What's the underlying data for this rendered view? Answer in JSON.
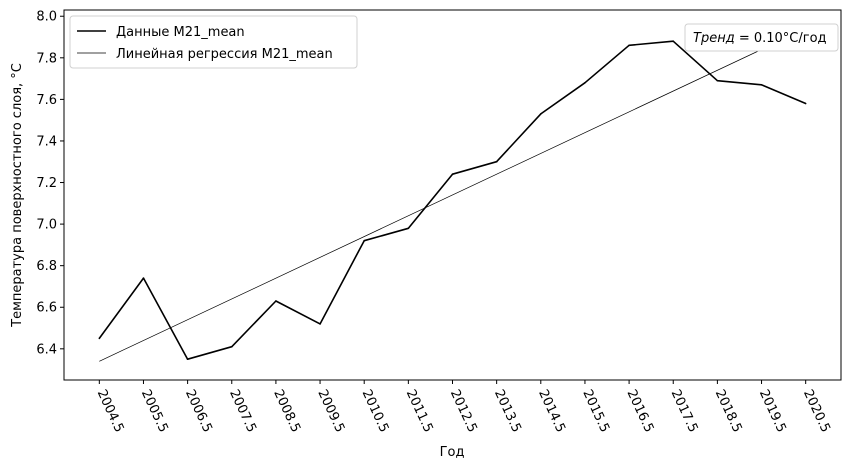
{
  "chart_data": {
    "type": "line",
    "xlabel": "Год",
    "ylabel": "Температура поверхностного слоя, °C",
    "x_ticks": [
      "2004.5",
      "2005.5",
      "2006.5",
      "2007.5",
      "2008.5",
      "2009.5",
      "2010.5",
      "2011.5",
      "2012.5",
      "2013.5",
      "2014.5",
      "2015.5",
      "2016.5",
      "2017.5",
      "2018.5",
      "2019.5",
      "2020.5"
    ],
    "x": [
      2004.5,
      2005.5,
      2006.5,
      2007.5,
      2008.5,
      2009.5,
      2010.5,
      2011.5,
      2012.5,
      2013.5,
      2014.5,
      2015.5,
      2016.5,
      2017.5,
      2018.5,
      2019.5,
      2020.5
    ],
    "xlim": [
      2003.7,
      2021.3
    ],
    "ylim": [
      6.25,
      8.03
    ],
    "y_ticks": [
      6.4,
      6.6,
      6.8,
      7.0,
      7.2,
      7.4,
      7.6,
      7.8,
      8.0
    ],
    "y_tick_labels": [
      "6.4",
      "6.6",
      "6.8",
      "7.0",
      "7.2",
      "7.4",
      "7.6",
      "7.8",
      "8.0"
    ],
    "series": [
      {
        "name": "Данные M21_mean",
        "color": "#000000",
        "values": [
          6.45,
          6.74,
          6.35,
          6.41,
          6.63,
          6.52,
          6.92,
          6.98,
          7.24,
          7.3,
          7.53,
          7.68,
          7.86,
          7.88,
          7.69,
          7.67,
          7.58
        ]
      },
      {
        "name": "Линейная регрессия M21_mean",
        "color": "#000000",
        "x": [
          2004.5,
          2020.5
        ],
        "values": [
          6.34,
          7.94
        ]
      }
    ],
    "legend_position": "top-left",
    "annotation": {
      "prefix": "Тренд",
      "suffix": " = 0.10°C/год"
    },
    "grid": false
  }
}
